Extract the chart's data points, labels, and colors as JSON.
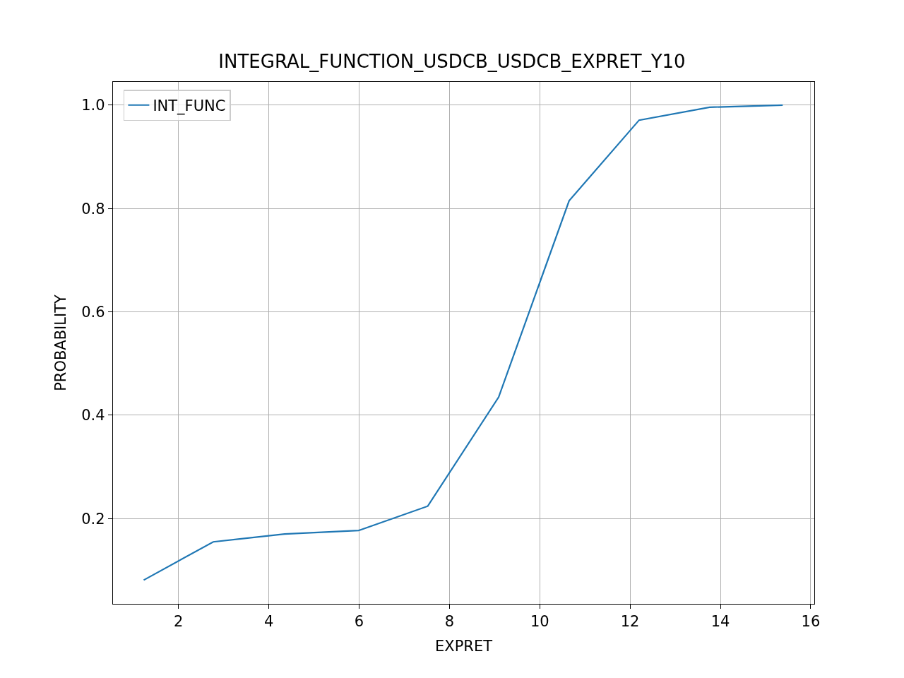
{
  "chart_data": {
    "type": "line",
    "title": "INTEGRAL_FUNCTION_USDCB_USDCB_EXPRET_Y10",
    "xlabel": "EXPRET",
    "ylabel": "PROBABILITY",
    "x": [
      1.23,
      2.77,
      4.35,
      5.99,
      7.52,
      9.09,
      10.65,
      12.2,
      13.76,
      15.38
    ],
    "series": [
      {
        "name": "INT_FUNC",
        "color": "#1f77b4",
        "values": [
          0.081,
          0.155,
          0.17,
          0.177,
          0.224,
          0.435,
          0.815,
          0.971,
          0.996,
          1.0
        ]
      }
    ],
    "xlim": [
      0.55,
      16.08
    ],
    "ylim": [
      0.035,
      1.045
    ],
    "xticks": [
      2,
      4,
      6,
      8,
      10,
      12,
      14,
      16
    ],
    "yticks": [
      0.2,
      0.4,
      0.6,
      0.8,
      {
        "value": 1,
        "label": "1.0"
      }
    ],
    "grid": true,
    "legend": "top left",
    "line_style": "solid",
    "marker": "none"
  }
}
